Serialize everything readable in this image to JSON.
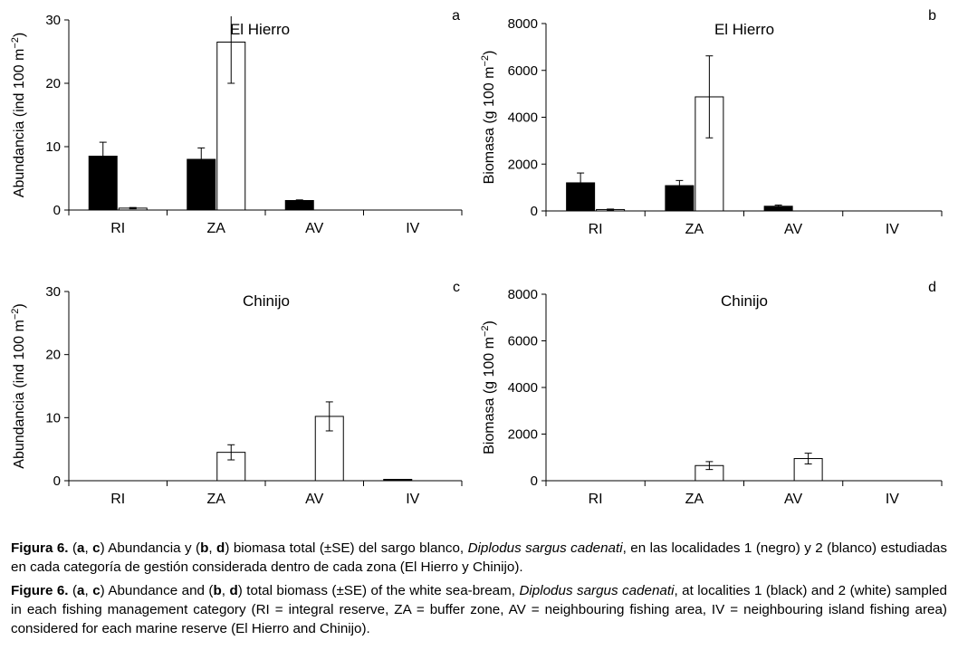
{
  "chart_data": [
    {
      "id": "a",
      "type": "bar",
      "panel_letter": "a",
      "title": "El Hierro",
      "ylabel": "Abundancia (ind 100 m",
      "ylabel_sup": "−2",
      "ylabel_close": ")",
      "ylim": [
        0,
        30
      ],
      "yticks": [
        "0",
        "10",
        "20",
        "30"
      ],
      "categories": [
        "RI",
        "ZA",
        "AV",
        "IV"
      ],
      "series": [
        {
          "name": "1 (negro)",
          "color": "#000000",
          "values": [
            8.5,
            8.0,
            1.5,
            0
          ],
          "errors": [
            2.2,
            1.8,
            0.1,
            0
          ]
        },
        {
          "name": "2 (blanco)",
          "color": "#ffffff",
          "values": [
            0.3,
            26.5,
            0,
            0
          ],
          "errors": [
            0.1,
            6.5,
            0,
            0
          ]
        }
      ]
    },
    {
      "id": "b",
      "type": "bar",
      "panel_letter": "b",
      "title": "El Hierro",
      "ylabel": "Biomasa (g 100 m",
      "ylabel_sup": "−2",
      "ylabel_close": ")",
      "ylim": [
        0,
        8000
      ],
      "yticks": [
        "0",
        "2000",
        "4000",
        "6000",
        "8000"
      ],
      "categories": [
        "RI",
        "ZA",
        "AV",
        "IV"
      ],
      "series": [
        {
          "name": "1 (negro)",
          "color": "#000000",
          "values": [
            1200,
            1080,
            200,
            0
          ],
          "errors": [
            420,
            220,
            50,
            0
          ]
        },
        {
          "name": "2 (blanco)",
          "color": "#ffffff",
          "values": [
            60,
            4870,
            0,
            0
          ],
          "errors": [
            20,
            1750,
            0,
            0
          ]
        }
      ]
    },
    {
      "id": "c",
      "type": "bar",
      "panel_letter": "c",
      "title": "Chinijo",
      "ylabel": "Abundancia (ind 100 m",
      "ylabel_sup": "−2",
      "ylabel_close": ")",
      "ylim": [
        0,
        30
      ],
      "yticks": [
        "0",
        "10",
        "20",
        "30"
      ],
      "categories": [
        "RI",
        "ZA",
        "AV",
        "IV"
      ],
      "series": [
        {
          "name": "1 (negro)",
          "color": "#000000",
          "values": [
            0,
            0,
            0,
            0.2
          ],
          "errors": [
            0,
            0,
            0,
            0
          ]
        },
        {
          "name": "2 (blanco)",
          "color": "#ffffff",
          "values": [
            0,
            4.5,
            10.2,
            0
          ],
          "errors": [
            0,
            1.2,
            2.3,
            0
          ]
        }
      ]
    },
    {
      "id": "d",
      "type": "bar",
      "panel_letter": "d",
      "title": "Chinijo",
      "ylabel": "Biomasa (g 100 m",
      "ylabel_sup": "−2",
      "ylabel_close": ")",
      "ylim": [
        0,
        8000
      ],
      "yticks": [
        "0",
        "2000",
        "4000",
        "6000",
        "8000"
      ],
      "categories": [
        "RI",
        "ZA",
        "AV",
        "IV"
      ],
      "series": [
        {
          "name": "1 (negro)",
          "color": "#000000",
          "values": [
            0,
            0,
            0,
            0
          ],
          "errors": [
            0,
            0,
            0,
            0
          ]
        },
        {
          "name": "2 (blanco)",
          "color": "#ffffff",
          "values": [
            0,
            650,
            950,
            0
          ],
          "errors": [
            0,
            170,
            230,
            0
          ]
        }
      ]
    }
  ],
  "caption_es": {
    "label": "Figura 6.",
    "t1": " (",
    "a": "a",
    "t2": ", ",
    "c": "c",
    "t3": ") Abundancia y (",
    "b": "b",
    "t4": ", ",
    "d": "d",
    "t5": ") biomasa total (±SE) del sargo blanco, ",
    "species": "Diplodus sargus cadenati",
    "t6": ", en las localidades 1 (negro) y 2 (blanco) estudiadas en cada categoría de gestión considerada dentro de cada zona (El Hierro y Chinijo)."
  },
  "caption_en": {
    "label": "Figure 6.",
    "t1": " (",
    "a": "a",
    "t2": ", ",
    "c": "c",
    "t3": ") Abundance and (",
    "b": "b",
    "t4": ", ",
    "d": "d",
    "t5": ") total biomass (±SE) of the white sea-bream, ",
    "species": "Diplodus sargus cadenati",
    "t6": ", at localities 1 (black) and 2 (white) sampled in each fishing management category (RI = integral reserve, ZA = buffer zone, AV = neighbouring fishing area, IV = neighbouring island fishing area) considered for each marine reserve (El Hierro and Chinijo)."
  }
}
